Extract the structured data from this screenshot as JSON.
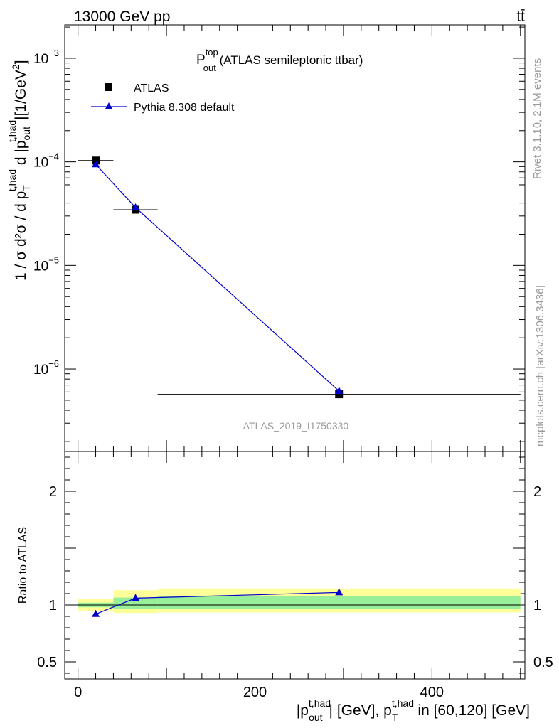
{
  "header": {
    "energy": "13000 GeV pp",
    "process": "tt̄"
  },
  "side_labels": {
    "rivet": "Rivet 3.1.10,  2.1M events",
    "mcplots": "mcplots.cern.ch [arXiv:1306.3436]"
  },
  "plot": {
    "title_main": "P",
    "title_sup": "top",
    "title_sub": "out",
    "title_rest": " (ATLAS semileptonic ttbar)",
    "analysis_id": "ATLAS_2019_I1750330",
    "ylabel_main": "1 / σ d²σ / d p",
    "ylabel_sub": "T",
    "ylabel_sup": "t,had",
    "ylabel_mid": " d |p",
    "ylabel_sub2": "out",
    "ylabel_sup2": "t,had",
    "ylabel_tail": "|[1/GeV",
    "ylabel_tail_sup": "2",
    "ylabel_end": "]",
    "ratio_ylabel": "Ratio to ATLAS",
    "xlabel_pre": "|p",
    "xlabel_sup1": "t,had",
    "xlabel_sub1": "out",
    "xlabel_mid": "| [GeV], p",
    "xlabel_sup2": "t,had",
    "xlabel_sub2": "T",
    "xlabel_post": " in [60,120] [GeV]",
    "main_ticks": [
      {
        "base": "10",
        "exp": "−3",
        "value": 0.001
      },
      {
        "base": "10",
        "exp": "−4",
        "value": 0.0001
      },
      {
        "base": "10",
        "exp": "−5",
        "value": 1e-05
      },
      {
        "base": "10",
        "exp": "−6",
        "value": 1e-06
      }
    ],
    "ratio_ticks": [
      {
        "label": "2",
        "value": 2
      },
      {
        "label": "1",
        "value": 1
      },
      {
        "label": "0.5",
        "value": 0.5
      }
    ],
    "x_ticks": [
      {
        "label": "0",
        "value": 0
      },
      {
        "label": "200",
        "value": 200
      },
      {
        "label": "400",
        "value": 400
      }
    ]
  },
  "legend": [
    {
      "label": "ATLAS",
      "marker": "square",
      "color": "#000000"
    },
    {
      "label": "Pythia 8.308 default",
      "marker": "triangle",
      "color": "#0000cc"
    }
  ],
  "chart_data": [
    {
      "type": "scatter",
      "panel": "main",
      "xlim": [
        -15,
        505
      ],
      "ylim": [
        1.6e-07,
        0.0021
      ],
      "yscale": "log",
      "series": [
        {
          "name": "ATLAS",
          "x": [
            20,
            65,
            295
          ],
          "xerr": [
            [
              0,
              40
            ],
            [
              40,
              90
            ],
            [
              90,
              500
            ]
          ],
          "values": [
            0.000103,
            3.45e-05,
            5.7e-07
          ]
        },
        {
          "name": "Pythia 8.308 default",
          "x": [
            20,
            65,
            295
          ],
          "values": [
            9.45e-05,
            3.62e-05,
            6.13e-07
          ]
        }
      ]
    },
    {
      "type": "line",
      "panel": "ratio",
      "xlim": [
        -15,
        505
      ],
      "ylim": [
        0.35,
        2.35
      ],
      "bands": [
        {
          "x": [
            0,
            40
          ],
          "outer": [
            0.95,
            1.05
          ],
          "inner": [
            0.98,
            1.02
          ]
        },
        {
          "x": [
            40,
            90
          ],
          "outer": [
            0.93,
            1.13
          ],
          "inner": [
            0.965,
            1.065
          ]
        },
        {
          "x": [
            90,
            500
          ],
          "outer": [
            0.935,
            1.145
          ],
          "inner": [
            0.965,
            1.075
          ]
        }
      ],
      "series": [
        {
          "name": "Pythia 8.308 default",
          "x": [
            20,
            65,
            295
          ],
          "values": [
            0.92,
            1.06,
            1.11
          ]
        }
      ]
    }
  ],
  "colors": {
    "data": "#000000",
    "mc": "#0000cc",
    "band_outer": "#ffff99",
    "band_inner": "#99ee99",
    "gray_text": "#9a9a9a"
  }
}
